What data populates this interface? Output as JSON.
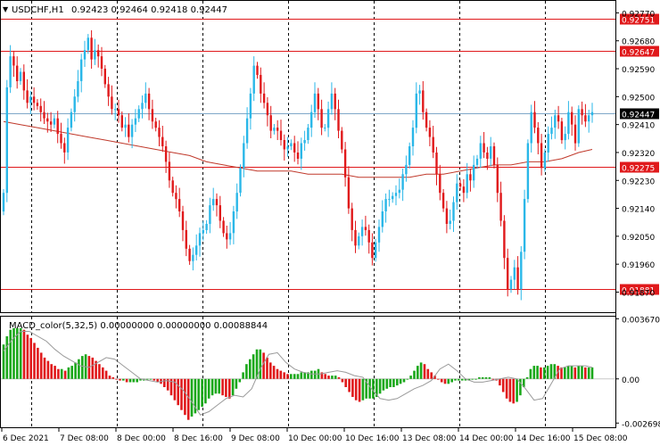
{
  "header": {
    "symbol": "USDCHF,H1",
    "ohlc": "0.92423 0.92464 0.92418 0.92447"
  },
  "colors": {
    "bull": "#2ab7e8",
    "bear": "#e0191b",
    "ma": "#c0392b",
    "hline": "#e0191b",
    "current_line": "#7fa7c9",
    "grid": "#000000",
    "macd_pos": "#1aa81a",
    "macd_neg": "#e0191b"
  },
  "chart_data": [
    {
      "type": "candlestick",
      "title": "USDCHF,H1",
      "ylim": [
        0.91811,
        0.928
      ],
      "y_ticks": [
        "0.92770",
        "0.92680",
        "0.92590",
        "0.92500",
        "0.92410",
        "0.92320",
        "0.92230",
        "0.92140",
        "0.92050",
        "0.91960",
        "0.91870"
      ],
      "x_ticks": [
        "6 Dec 2021",
        "7 Dec 08:00",
        "8 Dec 00:00",
        "8 Dec 16:00",
        "9 Dec 08:00",
        "10 Dec 00:00",
        "10 Dec 16:00",
        "13 Dec 08:00",
        "14 Dec 00:00",
        "14 Dec 16:00",
        "15 Dec 08:00"
      ],
      "price_levels": [
        {
          "label": "0.92751",
          "value": 0.92751
        },
        {
          "label": "0.92647",
          "value": 0.92647
        },
        {
          "label": "0.92275",
          "value": 0.92275
        },
        {
          "label": "0.91881",
          "value": 0.91881
        }
      ],
      "current_price": {
        "label": "0.92447",
        "value": 0.92447
      },
      "closes": [
        0.9219,
        0.9253,
        0.9263,
        0.926,
        0.9255,
        0.9258,
        0.9252,
        0.9248,
        0.925,
        0.9248,
        0.9247,
        0.9245,
        0.9243,
        0.9242,
        0.9241,
        0.9243,
        0.9238,
        0.9235,
        0.9232,
        0.924,
        0.9245,
        0.925,
        0.9255,
        0.9262,
        0.9265,
        0.9269,
        0.9262,
        0.9265,
        0.9263,
        0.9259,
        0.9254,
        0.925,
        0.9246,
        0.9246,
        0.9244,
        0.924,
        0.9241,
        0.9237,
        0.9241,
        0.9243,
        0.9246,
        0.9248,
        0.9251,
        0.9246,
        0.9242,
        0.924,
        0.9237,
        0.9234,
        0.9229,
        0.9223,
        0.9219,
        0.9217,
        0.9213,
        0.9207,
        0.9201,
        0.9197,
        0.9199,
        0.9202,
        0.9206,
        0.9207,
        0.9209,
        0.9215,
        0.9217,
        0.9215,
        0.921,
        0.9206,
        0.9204,
        0.9206,
        0.9213,
        0.9219,
        0.9227,
        0.9235,
        0.9243,
        0.9251,
        0.926,
        0.9257,
        0.9251,
        0.9248,
        0.9244,
        0.9239,
        0.924,
        0.9239,
        0.9236,
        0.9233,
        0.9234,
        0.9235,
        0.9232,
        0.923,
        0.9235,
        0.9236,
        0.924,
        0.9245,
        0.9251,
        0.9246,
        0.924,
        0.924,
        0.9246,
        0.9251,
        0.9246,
        0.9239,
        0.9233,
        0.9224,
        0.9214,
        0.9207,
        0.9202,
        0.9205,
        0.9208,
        0.9207,
        0.9203,
        0.9198,
        0.9203,
        0.9208,
        0.9213,
        0.9217,
        0.9217,
        0.9218,
        0.9219,
        0.922,
        0.9225,
        0.9228,
        0.9234,
        0.924,
        0.9251,
        0.9252,
        0.9245,
        0.924,
        0.9237,
        0.9232,
        0.9225,
        0.9219,
        0.9214,
        0.9209,
        0.921,
        0.9216,
        0.9222,
        0.9221,
        0.9219,
        0.9225,
        0.9223,
        0.9228,
        0.923,
        0.9235,
        0.9232,
        0.923,
        0.9234,
        0.9228,
        0.9219,
        0.921,
        0.9198,
        0.9188,
        0.9191,
        0.9195,
        0.9188,
        0.92,
        0.9217,
        0.9235,
        0.9245,
        0.924,
        0.9235,
        0.9227,
        0.9232,
        0.9238,
        0.924,
        0.9244,
        0.9242,
        0.9236,
        0.9238,
        0.9245,
        0.9241,
        0.9235,
        0.9246,
        0.9244,
        0.9242,
        0.9244,
        0.9245
      ],
      "ma_values": [
        0.9242,
        0.9241,
        0.924,
        0.9239,
        0.9238,
        0.9237,
        0.9236,
        0.9235,
        0.9234,
        0.9233,
        0.9232,
        0.9231,
        0.9229,
        0.9228,
        0.9227,
        0.9226,
        0.9226,
        0.9226,
        0.9225,
        0.9225,
        0.9225,
        0.9224,
        0.9224,
        0.9224,
        0.9224,
        0.9225,
        0.9225,
        0.9226,
        0.9227,
        0.9228,
        0.9228,
        0.9229,
        0.9229,
        0.923,
        0.9232,
        0.9233
      ],
      "ma_stride": 5
    },
    {
      "type": "bar",
      "title": "MACD_color(5,32,5) 0.00000000 0.00000000 0.00088844",
      "ylim": [
        -0.0029,
        0.0038
      ],
      "y_ticks": [
        "0.003670",
        "0.00",
        "-0.002698"
      ],
      "y_tick_values": [
        0.00367,
        0.0,
        -0.002698
      ],
      "values": [
        0.0021,
        0.0026,
        0.003,
        0.0031,
        0.0031,
        0.0031,
        0.003,
        0.0027,
        0.0025,
        0.0022,
        0.0019,
        0.0016,
        0.0013,
        0.0011,
        0.0009,
        0.0008,
        0.0006,
        0.0006,
        0.0005,
        0.0007,
        0.0008,
        0.001,
        0.0012,
        0.0014,
        0.0015,
        0.0014,
        0.0013,
        0.0011,
        0.0009,
        0.0007,
        0.0005,
        0.0002,
        0.0001,
        0.0,
        -0.0001,
        -0.0001,
        -0.0002,
        -0.0002,
        -0.0002,
        -0.0002,
        -0.0001,
        -0.0001,
        0.0,
        0.0,
        -0.0001,
        -0.0002,
        -0.0003,
        -0.0005,
        -0.0007,
        -0.001,
        -0.0013,
        -0.0016,
        -0.0019,
        -0.0022,
        -0.0025,
        -0.0023,
        -0.0021,
        -0.0019,
        -0.0017,
        -0.0015,
        -0.0012,
        -0.001,
        -0.0009,
        -0.0009,
        -0.001,
        -0.0011,
        -0.0012,
        -0.001,
        -0.0006,
        -0.0002,
        0.0004,
        0.0009,
        0.0012,
        0.0015,
        0.0018,
        0.0018,
        0.0016,
        0.0013,
        0.001,
        0.0008,
        0.0006,
        0.0005,
        0.0004,
        0.0003,
        0.0003,
        0.0003,
        0.0003,
        0.0004,
        0.0004,
        0.0004,
        0.0005,
        0.0005,
        0.0006,
        0.0004,
        0.0003,
        0.0002,
        0.0002,
        0.0002,
        0.0001,
        -0.0002,
        -0.0005,
        -0.0008,
        -0.0011,
        -0.0013,
        -0.0014,
        -0.0013,
        -0.0012,
        -0.0012,
        -0.0012,
        -0.0011,
        -0.0009,
        -0.0007,
        -0.0006,
        -0.0005,
        -0.0005,
        -0.0004,
        -0.0003,
        -0.0002,
        0.0,
        0.0002,
        0.0005,
        0.0008,
        0.001,
        0.0009,
        0.0006,
        0.0004,
        0.0002,
        0.0,
        -0.0002,
        -0.0003,
        -0.0003,
        -0.0002,
        -0.0001,
        -0.0001,
        -0.0001,
        -0.0001,
        -0.0001,
        0.0,
        0.0,
        0.0001,
        0.0001,
        0.0001,
        0.0001,
        0.0,
        -0.0001,
        -0.0004,
        -0.0008,
        -0.0012,
        -0.0014,
        -0.0015,
        -0.0014,
        -0.001,
        -0.0005,
        0.0001,
        0.0006,
        0.0008,
        0.0008,
        0.0007,
        0.0007,
        0.0008,
        0.0009,
        0.0009,
        0.0008,
        0.0007,
        0.0007,
        0.0008,
        0.0008,
        0.0007,
        0.0008,
        0.0008,
        0.0007,
        0.0007,
        0.0007
      ],
      "signal_values": [
        0.0017,
        0.0024,
        0.0029,
        0.0029,
        0.0026,
        0.0023,
        0.0018,
        0.0014,
        0.0011,
        0.0008,
        0.0007,
        0.001,
        0.0013,
        0.0012,
        0.0008,
        0.0004,
        0.0,
        -0.0001,
        -0.0002,
        -0.0001,
        -0.0002,
        -0.0007,
        -0.0014,
        -0.0022,
        -0.002,
        -0.0016,
        -0.0012,
        -0.001,
        -0.0011,
        -0.0006,
        0.0006,
        0.0015,
        0.0016,
        0.001,
        0.0006,
        0.0004,
        0.0003,
        0.0003,
        0.0004,
        0.0005,
        0.0004,
        0.0002,
        0.0001,
        -0.0006,
        -0.0012,
        -0.0013,
        -0.0012,
        -0.0009,
        -0.0006,
        -0.0004,
        -0.0001,
        0.0006,
        0.0009,
        0.0005,
        0.0,
        -0.0002,
        -0.0002,
        -0.0001,
        0.0,
        0.0001,
        0.0,
        -0.0006,
        -0.0013,
        -0.0012,
        -0.0003,
        0.0006,
        0.0008,
        0.0008,
        0.0008,
        0.0007,
        0.0007
      ],
      "signal_stride": 2.5
    }
  ]
}
